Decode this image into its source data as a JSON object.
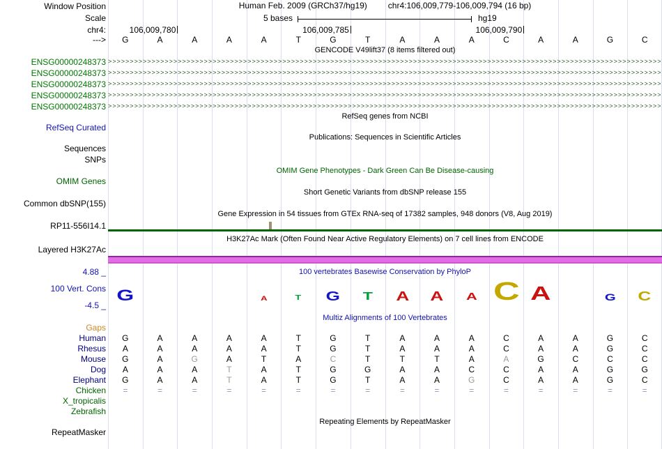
{
  "header": {
    "window_position_label": "Window Position",
    "assembly": "Human Feb. 2009 (GRCh37/hg19)",
    "position": "chr4:106,009,779-106,009,794 (16 bp)",
    "scale_label": "Scale",
    "scale_value": "5 bases",
    "scale_assembly": "hg19",
    "chrom_label": "chr4:",
    "coords": [
      "106,009,780",
      "106,009,785",
      "106,009,790"
    ],
    "strand_label": "--->",
    "sequence": [
      "G",
      "A",
      "A",
      "A",
      "A",
      "T",
      "G",
      "T",
      "A",
      "A",
      "A",
      "C",
      "A",
      "A",
      "G",
      "C"
    ]
  },
  "tracks": {
    "gencode": {
      "title": "GENCODE V49lift37 (8 items filtered out)",
      "arrow_char": ">",
      "gene_rows": [
        "ENSG00000248373",
        "ENSG00000248373",
        "ENSG00000248373",
        "ENSG00000248373",
        "ENSG00000248373"
      ]
    },
    "refseq": {
      "title": "RefSeq genes from NCBI",
      "label": "RefSeq Curated"
    },
    "publications": {
      "title": "Publications: Sequences in Scientific Articles",
      "label": "Sequences"
    },
    "snps_label": "SNPs",
    "omim": {
      "title": "OMIM Gene Phenotypes - Dark Green Can Be Disease-causing",
      "label": "OMIM Genes"
    },
    "dbsnp": {
      "title": "Short Genetic Variants from dbSNP release 155",
      "label": "Common dbSNP(155)"
    },
    "gtex": {
      "title": "Gene Expression in 54 tissues from GTEx RNA-seq of 17382 samples, 948 donors (V8, Aug 2019)",
      "label": "RP11-556I14.1"
    },
    "h3k27ac": {
      "title": "H3K27Ac Mark (Often Found Near Active Regulatory Elements) on 7 cell lines from ENCODE",
      "label": "Layered H3K27Ac"
    },
    "conservation": {
      "title": "100 vertebrates Basewise Conservation by PhyloP",
      "label": "100 Vert. Cons",
      "max_label": "4.88 _",
      "min_label": "-4.5 _",
      "logo": [
        {
          "col": 0,
          "char": "G",
          "size": 22
        },
        {
          "col": 4,
          "char": "A",
          "size": 9
        },
        {
          "col": 5,
          "char": "T",
          "size": 10
        },
        {
          "col": 6,
          "char": "G",
          "size": 18
        },
        {
          "col": 7,
          "char": "T",
          "size": 16
        },
        {
          "col": 8,
          "char": "A",
          "size": 18
        },
        {
          "col": 9,
          "char": "A",
          "size": 18
        },
        {
          "col": 10,
          "char": "A",
          "size": 15
        },
        {
          "col": 11,
          "char": "C",
          "size": 36
        },
        {
          "col": 12,
          "char": "A",
          "size": 28
        },
        {
          "col": 14,
          "char": "G",
          "size": 14
        },
        {
          "col": 15,
          "char": "C",
          "size": 18
        }
      ]
    },
    "multiz": {
      "title": "Multiz Alignments of 100 Vertebrates",
      "gaps_label": "Gaps",
      "species": [
        {
          "name": "Human",
          "group": "mammal",
          "bases": [
            "G",
            "A",
            "A",
            "A",
            "A",
            "T",
            "G",
            "T",
            "A",
            "A",
            "A",
            "C",
            "A",
            "A",
            "G",
            "C"
          ],
          "dim": []
        },
        {
          "name": "Rhesus",
          "group": "mammal",
          "bases": [
            "A",
            "A",
            "A",
            "A",
            "A",
            "T",
            "G",
            "T",
            "A",
            "A",
            "A",
            "C",
            "A",
            "A",
            "G",
            "C"
          ],
          "dim": []
        },
        {
          "name": "Mouse",
          "group": "mammal",
          "bases": [
            "G",
            "A",
            "G",
            "A",
            "T",
            "A",
            "C",
            "T",
            "T",
            "T",
            "A",
            "A",
            "G",
            "C",
            "C",
            "C"
          ],
          "dim": [
            2,
            6,
            11
          ]
        },
        {
          "name": "Dog",
          "group": "mammal",
          "bases": [
            "A",
            "A",
            "A",
            "T",
            "A",
            "T",
            "G",
            "G",
            "A",
            "A",
            "C",
            "C",
            "A",
            "A",
            "G",
            "G"
          ],
          "dim": [
            3
          ]
        },
        {
          "name": "Elephant",
          "group": "mammal",
          "bases": [
            "G",
            "A",
            "A",
            "T",
            "A",
            "T",
            "G",
            "T",
            "A",
            "A",
            "G",
            "C",
            "A",
            "A",
            "G",
            "C"
          ],
          "dim": [
            3,
            10
          ]
        },
        {
          "name": "Chicken",
          "group": "other",
          "bases": [
            "=",
            "=",
            "=",
            "=",
            "=",
            "=",
            "=",
            "=",
            "=",
            "=",
            "=",
            "=",
            "=",
            "=",
            "=",
            "="
          ],
          "dim": []
        },
        {
          "name": "X_tropicalis",
          "group": "other",
          "bases": [],
          "dim": []
        },
        {
          "name": "Zebrafish",
          "group": "other",
          "bases": [],
          "dim": []
        }
      ]
    },
    "repeatmasker": {
      "title": "Repeating Elements by RepeatMasker",
      "label": "RepeatMasker"
    }
  },
  "colors": {
    "gencode_label": "#007700",
    "refseq_label": "#1212b4",
    "omim_green": "#006400",
    "conservation_blue": "#1212b4",
    "gaps_label": "#c8882a",
    "mammal_label": "#000080",
    "nonmammal_label": "#006400",
    "gtex_line": "#006400",
    "h3k27ac_band": "#e36be3",
    "h3k27ac_band_top": "#8e24aa",
    "grid_line": "#dadfef",
    "logo_A": "#cc1111",
    "logo_C": "#c2a800",
    "logo_G": "#1414c8",
    "logo_T": "#00a036",
    "dim_base": "#999999",
    "equals_mark": "#8c9cc0"
  }
}
